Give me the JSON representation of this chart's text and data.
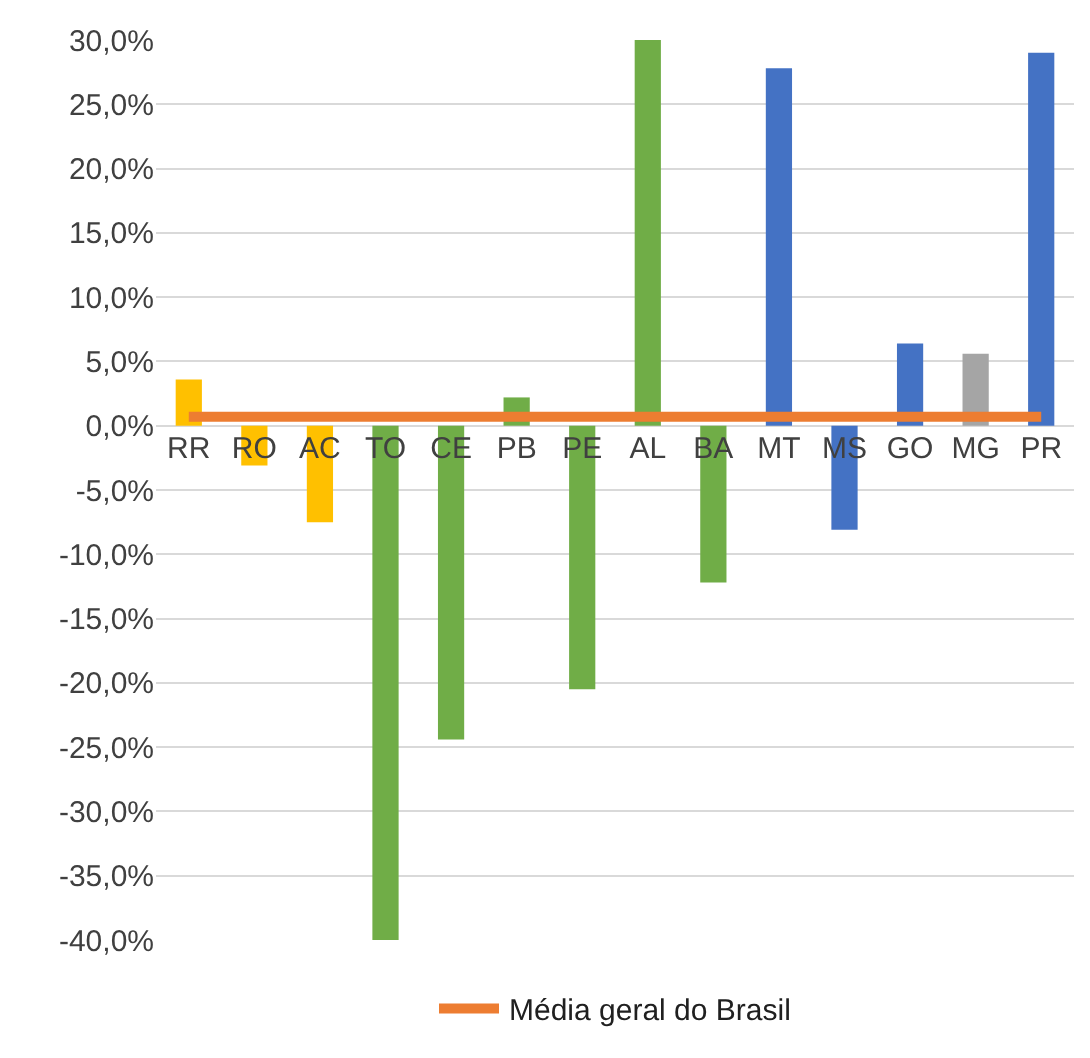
{
  "chart_data": {
    "type": "bar",
    "categories": [
      "RR",
      "RO",
      "AC",
      "TO",
      "CE",
      "PB",
      "PE",
      "AL",
      "BA",
      "MT",
      "MS",
      "GO",
      "MG",
      "PR"
    ],
    "series": [
      {
        "colors": [
          "#ffc000",
          "#ffc000",
          "#ffc000",
          "#70ad47",
          "#70ad47",
          "#70ad47",
          "#70ad47",
          "#70ad47",
          "#70ad47",
          "#4472c4",
          "#4472c4",
          "#4472c4",
          "#a5a5a5",
          "#4472c4"
        ],
        "values": [
          3.6,
          -3.1,
          -7.5,
          -40,
          -24.4,
          2.2,
          -20.5,
          30,
          -12.2,
          27.8,
          -8.1,
          6.4,
          5.6,
          29.0
        ]
      },
      {
        "type": "line",
        "name": "Média geral do Brasil",
        "color": "#ed7d31",
        "values": [
          0.7,
          0.7,
          0.7,
          0.7,
          0.7,
          0.7,
          0.7,
          0.7,
          0.7,
          0.7,
          0.7,
          0.7,
          0.7,
          0.7
        ]
      }
    ],
    "ylim": [
      -40,
      30
    ],
    "yticks": [
      {
        "value": 30,
        "label": "30,0%"
      },
      {
        "value": 25,
        "label": "25,0%"
      },
      {
        "value": 20,
        "label": "20,0%"
      },
      {
        "value": 15,
        "label": "15,0%"
      },
      {
        "value": 10,
        "label": "10,0%"
      },
      {
        "value": 5,
        "label": "5,0%"
      },
      {
        "value": 0,
        "label": "0,0%"
      },
      {
        "value": -5,
        "label": "-5,0%"
      },
      {
        "value": -10,
        "label": "-10,0%"
      },
      {
        "value": -15,
        "label": "-15,0%"
      },
      {
        "value": -20,
        "label": "-20,0%"
      },
      {
        "value": -25,
        "label": "-25,0%"
      },
      {
        "value": -30,
        "label": "-30,0%"
      },
      {
        "value": -35,
        "label": "-35,0%"
      },
      {
        "value": -40,
        "label": "-40,0%"
      }
    ],
    "grid": "y",
    "legend": "bottom",
    "marker": "none",
    "line_style": "solid"
  }
}
